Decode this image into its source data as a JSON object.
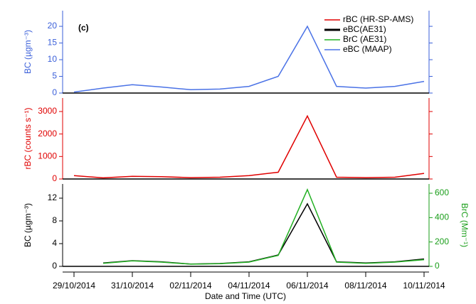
{
  "chart_data": {
    "type": "line",
    "panel_label": "(c)",
    "xlabel": "Date and Time (UTC)",
    "x": [
      "29/10/2014",
      "30/10/2014",
      "31/10/2014",
      "01/11/2014",
      "02/11/2014",
      "03/11/2014",
      "04/11/2014",
      "05/11/2014",
      "06/11/2014",
      "07/11/2014",
      "08/11/2014",
      "09/11/2014",
      "10/11/2014"
    ],
    "xlim": [
      "29/10/2014",
      "10/11/2014"
    ],
    "xticks": [
      "29/10/2014",
      "31/10/2014",
      "02/11/2014",
      "04/11/2014",
      "06/11/2014",
      "08/11/2014",
      "10/11/2014"
    ],
    "panels": [
      {
        "ylabel": "BC (µgm⁻³)",
        "ylim": [
          0,
          24.7
        ],
        "yticks": [
          0,
          5,
          10,
          15,
          20
        ],
        "axis_color": "#3a5fd9",
        "series": [
          {
            "name": "eBC (MAAP)",
            "color": "#4a72e6",
            "values": [
              0.3,
              1.5,
              2.5,
              1.8,
              1.0,
              1.2,
              2.0,
              5.0,
              20,
              2.0,
              1.5,
              2.0,
              3.5
            ]
          }
        ]
      },
      {
        "ylabel": "rBC (counts s⁻¹)",
        "ylim": [
          0,
          3600
        ],
        "yticks": [
          0,
          1000,
          2000,
          3000
        ],
        "axis_color": "#e00000",
        "series": [
          {
            "name": "rBC (HR-SP-AMS)",
            "color": "#e00000",
            "values": [
              150,
              50,
              120,
              100,
              60,
              80,
              150,
              300,
              2800,
              80,
              60,
              80,
              250
            ]
          }
        ]
      },
      {
        "ylabel": "BC (µgm⁻³)",
        "ylim": [
          0,
          14.5
        ],
        "yticks": [
          0,
          4,
          8,
          12
        ],
        "axis_color": "#000000",
        "y2label": "BrC (Mm⁻¹)",
        "y2lim": [
          0,
          676
        ],
        "y2ticks": [
          0,
          200,
          400,
          600
        ],
        "y2_color": "#1a9e1a",
        "series": [
          {
            "name": "eBC(AE31)",
            "color": "#000000",
            "values": [
              null,
              0.6,
              1.0,
              0.8,
              0.4,
              0.5,
              0.8,
              2.0,
              11,
              0.8,
              0.6,
              0.8,
              1.3
            ]
          },
          {
            "name": "BrC (AE31)",
            "color": "#22b022",
            "axis": "y2",
            "values": [
              null,
              25,
              45,
              35,
              18,
              22,
              35,
              90,
              630,
              35,
              25,
              35,
              55
            ]
          }
        ]
      }
    ]
  }
}
